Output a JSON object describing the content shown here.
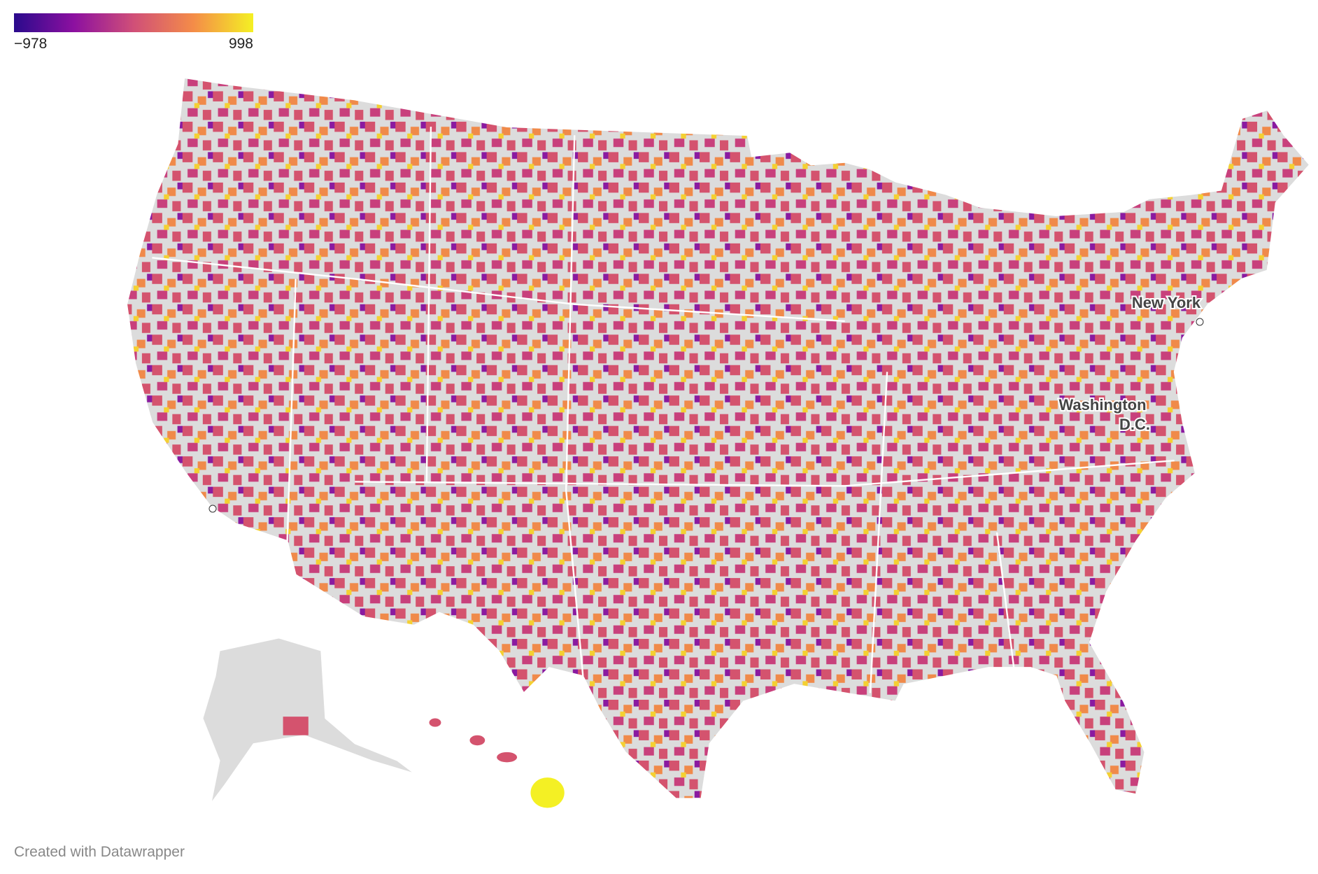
{
  "legend": {
    "min": {
      "value": -978,
      "label": "−978"
    },
    "max": 998,
    "colors": [
      "#2a0a8c",
      "#8c10a0",
      "#d04f78",
      "#f48c48",
      "#f4f024"
    ]
  },
  "labels": {
    "new_york": "New York",
    "washington_1": "Washington",
    "washington_2": "D.C."
  },
  "footer": "Created with Datawrapper"
}
